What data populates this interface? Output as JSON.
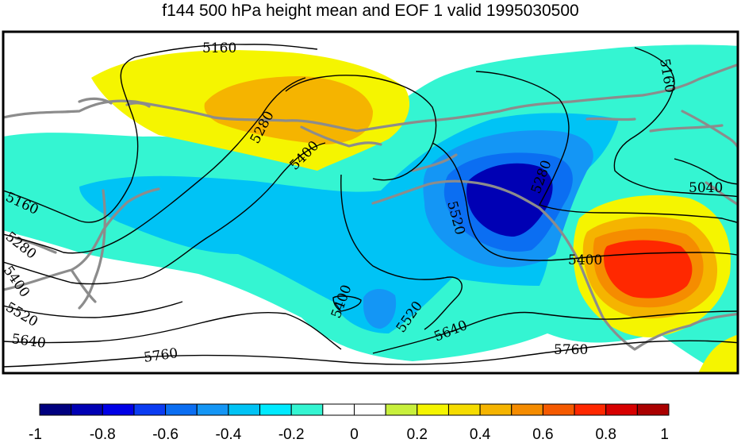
{
  "title": "f144 500 hPa height mean and EOF 1 valid 1995030500",
  "colorbar": {
    "tick_labels": [
      "-1",
      "-0.8",
      "-0.6",
      "-0.4",
      "-0.2",
      "0",
      "0.2",
      "0.4",
      "0.6",
      "0.8",
      "1"
    ],
    "colors": [
      "#00007f",
      "#0000b4",
      "#0000e6",
      "#0b3cf2",
      "#0b6ef2",
      "#1496f5",
      "#00c3f5",
      "#00eaff",
      "#34f5d2",
      "#ffffff",
      "#ffffff",
      "#c8f03c",
      "#f5f500",
      "#f5dc00",
      "#f5b400",
      "#f58c00",
      "#f55a00",
      "#ff2800",
      "#d70000",
      "#aa0000"
    ]
  },
  "contour_labels": [
    "5160",
    "5160",
    "5280",
    "5400",
    "5280",
    "5520",
    "5040",
    "5160",
    "5280",
    "5400",
    "5520",
    "5640",
    "5760",
    "5400",
    "5520",
    "5640",
    "5760",
    "5400"
  ],
  "eof_fill_colors": {
    "neg_weak": "#34f5d2",
    "neg_mid": "#00c3f5",
    "neg_strong": "#1496f5",
    "neg_stronger": "#0b6ef2",
    "neg_max": "#0000b4",
    "pos_weak": "#f5f500",
    "pos_mid": "#f5b400",
    "pos_strong": "#f58c00",
    "pos_max": "#ff2800",
    "coastline": "#8c8c8c"
  }
}
